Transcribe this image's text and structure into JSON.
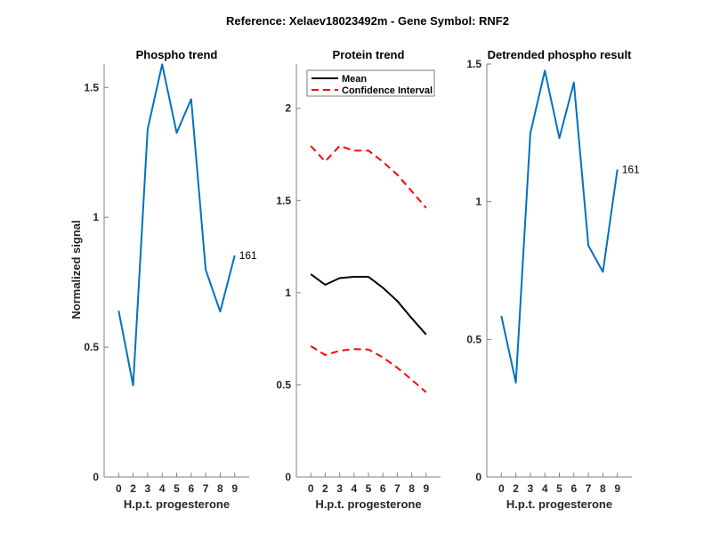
{
  "figure_title": "Reference:  Xelaev18023492m - Gene Symbol:  RNF2",
  "chart_data": [
    {
      "type": "line",
      "title": "Phospho trend",
      "xlabel": "H.p.t. progesterone",
      "ylabel": "Normalized signal",
      "categories": [
        "0",
        "2",
        "3",
        "4",
        "5",
        "6",
        "7",
        "8",
        "9"
      ],
      "ylim": [
        0,
        1.59
      ],
      "yticks": [
        0,
        0.5,
        1,
        1.5
      ],
      "ytick_labels": [
        "0",
        "0.5",
        "1",
        "1.5"
      ],
      "grid": false,
      "series": [
        {
          "name": "161",
          "color": "#0072BD",
          "values": [
            0.64,
            0.353,
            1.339,
            1.589,
            1.325,
            1.455,
            0.798,
            0.637,
            0.853
          ]
        }
      ],
      "annotations": [
        {
          "text": "161",
          "at_category": "9"
        }
      ]
    },
    {
      "type": "line",
      "title": "Protein trend",
      "xlabel": "H.p.t. progesterone",
      "ylabel": "",
      "categories": [
        "0",
        "2",
        "3",
        "4",
        "5",
        "6",
        "7",
        "8",
        "9"
      ],
      "ylim": [
        0,
        2.24
      ],
      "yticks": [
        0,
        0.5,
        1,
        1.5,
        2
      ],
      "ytick_labels": [
        "0",
        "0.5",
        "1",
        "1.5",
        "2"
      ],
      "grid": false,
      "legend_position": "top-left",
      "series": [
        {
          "name": "Mean",
          "color": "#000000",
          "style": "solid",
          "values": [
            1.1,
            1.043,
            1.079,
            1.086,
            1.086,
            1.027,
            0.955,
            0.861,
            0.773
          ]
        },
        {
          "name": "Confidence Interval",
          "color": "#FF0000",
          "style": "dashed",
          "values": [
            1.796,
            1.712,
            1.796,
            1.771,
            1.771,
            1.71,
            1.64,
            1.55,
            1.46
          ]
        },
        {
          "name": "Confidence Interval (lower)",
          "color": "#FF0000",
          "style": "dashed",
          "values": [
            0.71,
            0.662,
            0.685,
            0.694,
            0.692,
            0.649,
            0.593,
            0.528,
            0.46
          ]
        }
      ],
      "legend": [
        "Mean",
        "Confidence Interval"
      ]
    },
    {
      "type": "line",
      "title": "Detrended phospho result",
      "xlabel": "H.p.t. progesterone",
      "ylabel": "",
      "categories": [
        "0",
        "2",
        "3",
        "4",
        "5",
        "6",
        "7",
        "8",
        "9"
      ],
      "ylim": [
        0,
        1.5
      ],
      "yticks": [
        0,
        0.5,
        1,
        1.5
      ],
      "ytick_labels": [
        "0",
        "0.5",
        "1",
        "1.5"
      ],
      "grid": false,
      "series": [
        {
          "name": "161",
          "color": "#0072BD",
          "values": [
            0.585,
            0.343,
            1.249,
            1.476,
            1.231,
            1.433,
            0.841,
            0.745,
            1.117
          ]
        }
      ],
      "annotations": [
        {
          "text": "161",
          "at_category": "9"
        }
      ]
    }
  ]
}
